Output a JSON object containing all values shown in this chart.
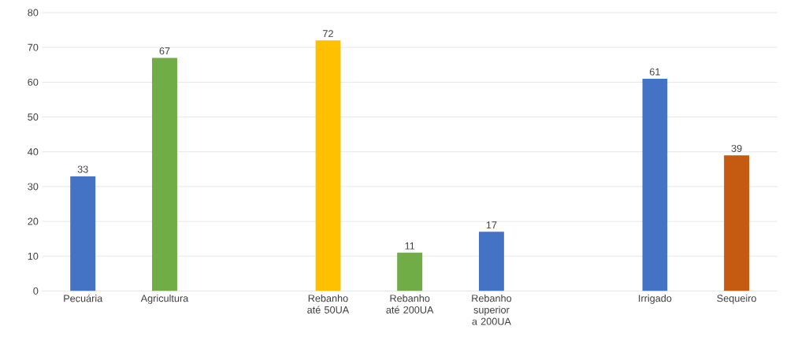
{
  "chart_data": {
    "type": "bar",
    "categories": [
      "Pecuária",
      "Agricultura",
      null,
      "Rebanho até 50UA",
      "Rebanho até 200UA",
      "Rebanho superior a 200UA",
      null,
      "Irrigado",
      "Sequeiro"
    ],
    "values": [
      33,
      67,
      null,
      72,
      11,
      17,
      null,
      61,
      39
    ],
    "colors": [
      "#4472c4",
      "#70ad47",
      null,
      "#ffc000",
      "#70ad47",
      "#4472c4",
      null,
      "#4472c4",
      "#c55a11"
    ],
    "ylim": [
      0,
      80
    ],
    "yticks": [
      0,
      10,
      20,
      30,
      40,
      50,
      60,
      70,
      80
    ],
    "grid": "y",
    "data_labels": true
  }
}
